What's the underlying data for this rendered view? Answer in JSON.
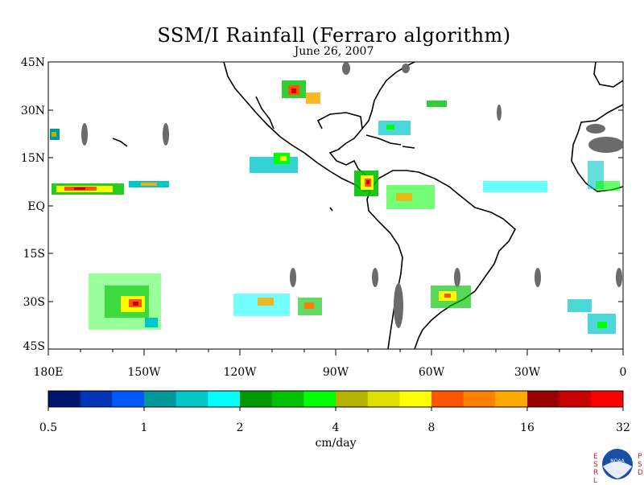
{
  "header": {
    "title": "SSM/I Rainfall (Ferraro algorithm)",
    "date": "June 26, 2007"
  },
  "map": {
    "lat_labels": [
      "45N",
      "30N",
      "15N",
      "EQ",
      "15S",
      "30S",
      "45S"
    ],
    "lon_labels": [
      "180E",
      "150W",
      "120W",
      "90W",
      "60W",
      "30W",
      "0"
    ],
    "extent": {
      "lon": [
        -180,
        0
      ],
      "lat": [
        -45,
        45
      ]
    }
  },
  "colorbar": {
    "colors": [
      "#00166e",
      "#0033b5",
      "#0058ff",
      "#00999a",
      "#00c8c8",
      "#00ffff",
      "#009800",
      "#00c200",
      "#00ff00",
      "#b3b300",
      "#e0e000",
      "#ffff00",
      "#ff5500",
      "#ff8000",
      "#ffaa00",
      "#960000",
      "#c80000",
      "#ff0000"
    ],
    "tick_labels": [
      "0.5",
      "1",
      "2",
      "4",
      "8",
      "16",
      "32"
    ],
    "unit": "cm/day"
  },
  "logo": {
    "left_letters": "ESRL",
    "right_letters": "PSD",
    "badge_text": "NOAA"
  }
}
